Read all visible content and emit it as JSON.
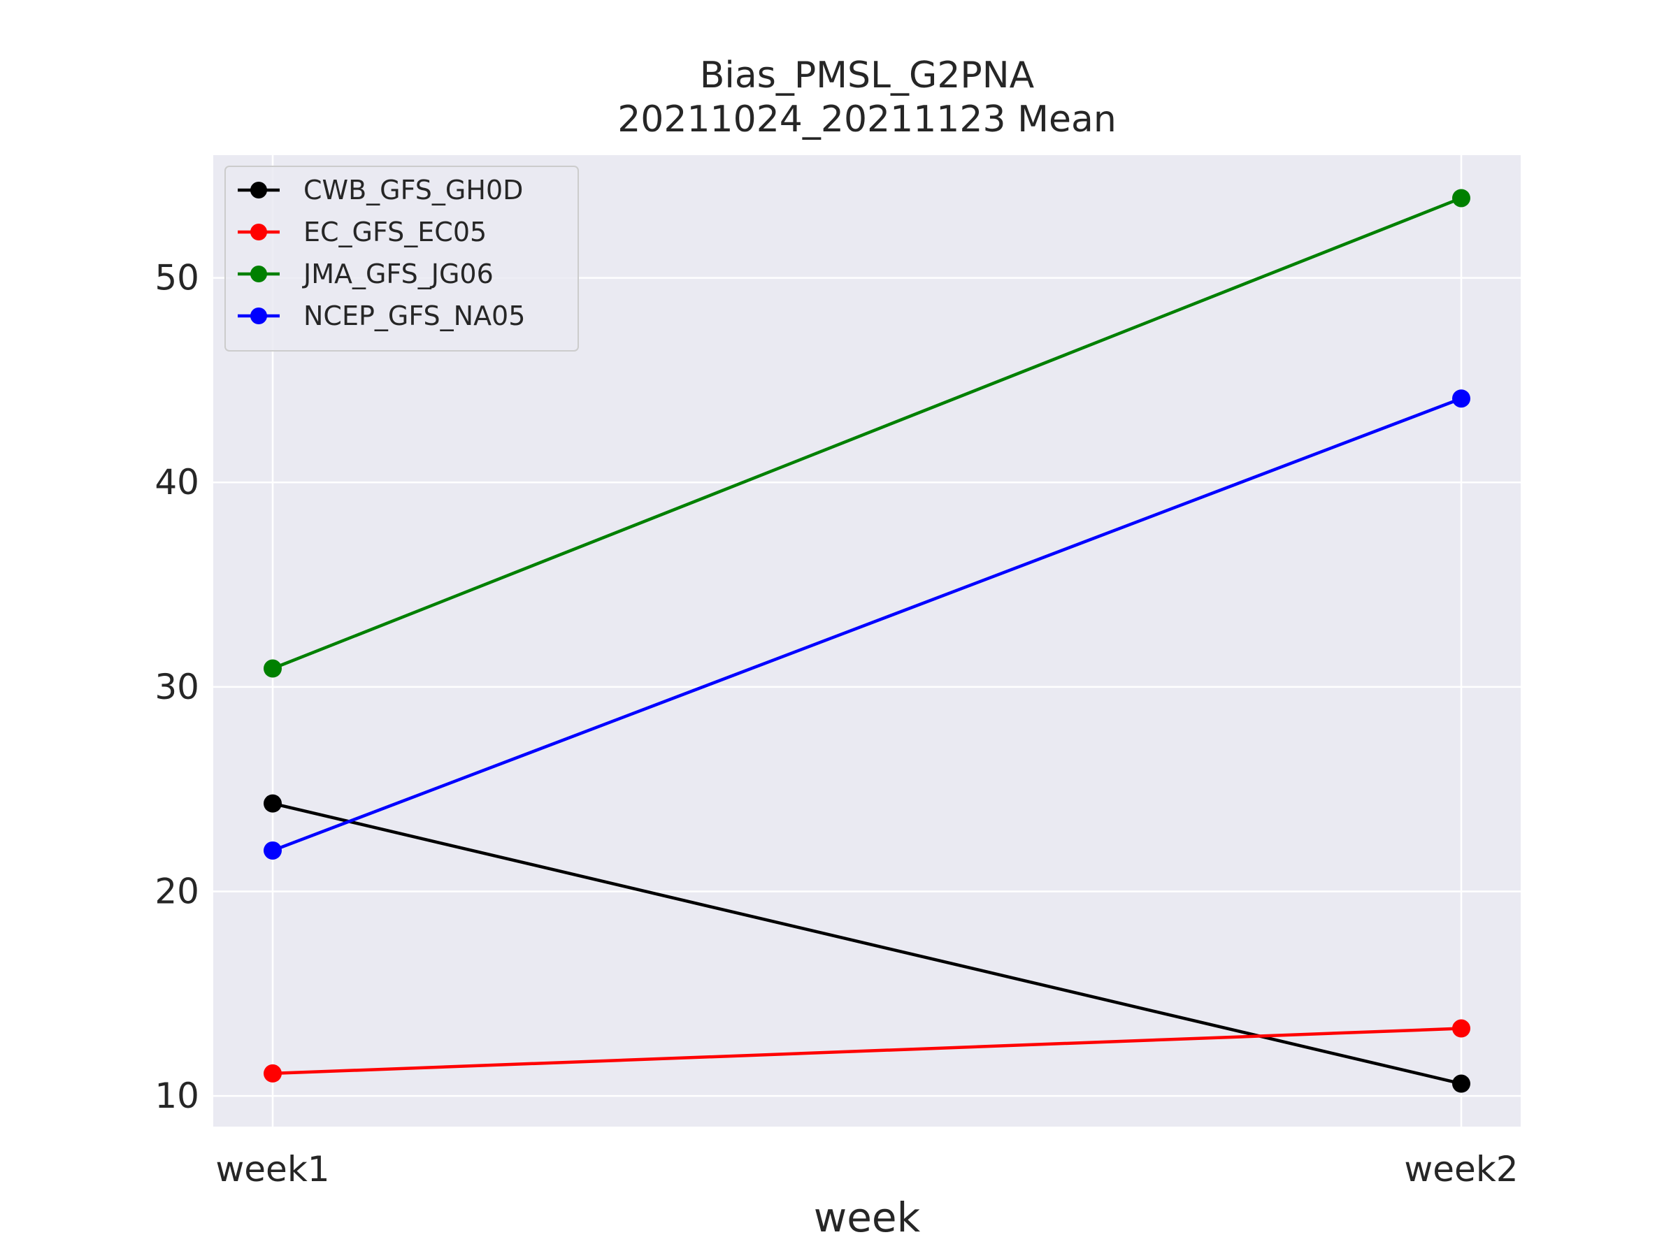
{
  "chart_data": {
    "type": "line",
    "title": "Bias_PMSL_G2PNA",
    "subtitle": "20211024_20211123 Mean",
    "xlabel": "week",
    "ylabel": "",
    "categories": [
      "week1",
      "week2"
    ],
    "ylim": [
      8.5,
      56
    ],
    "yticks": [
      10,
      20,
      30,
      40,
      50
    ],
    "grid": true,
    "legend_position": "top-left",
    "background_color": "#eaeaf2",
    "series": [
      {
        "name": "CWB_GFS_GH0D",
        "color": "#000000",
        "values": [
          24.3,
          10.6
        ]
      },
      {
        "name": "EC_GFS_EC05",
        "color": "#ff0000",
        "values": [
          11.1,
          13.3
        ]
      },
      {
        "name": "JMA_GFS_JG06",
        "color": "#008000",
        "values": [
          30.9,
          53.9
        ]
      },
      {
        "name": "NCEP_GFS_NA05",
        "color": "#0000ff",
        "values": [
          22.0,
          44.1
        ]
      }
    ]
  }
}
